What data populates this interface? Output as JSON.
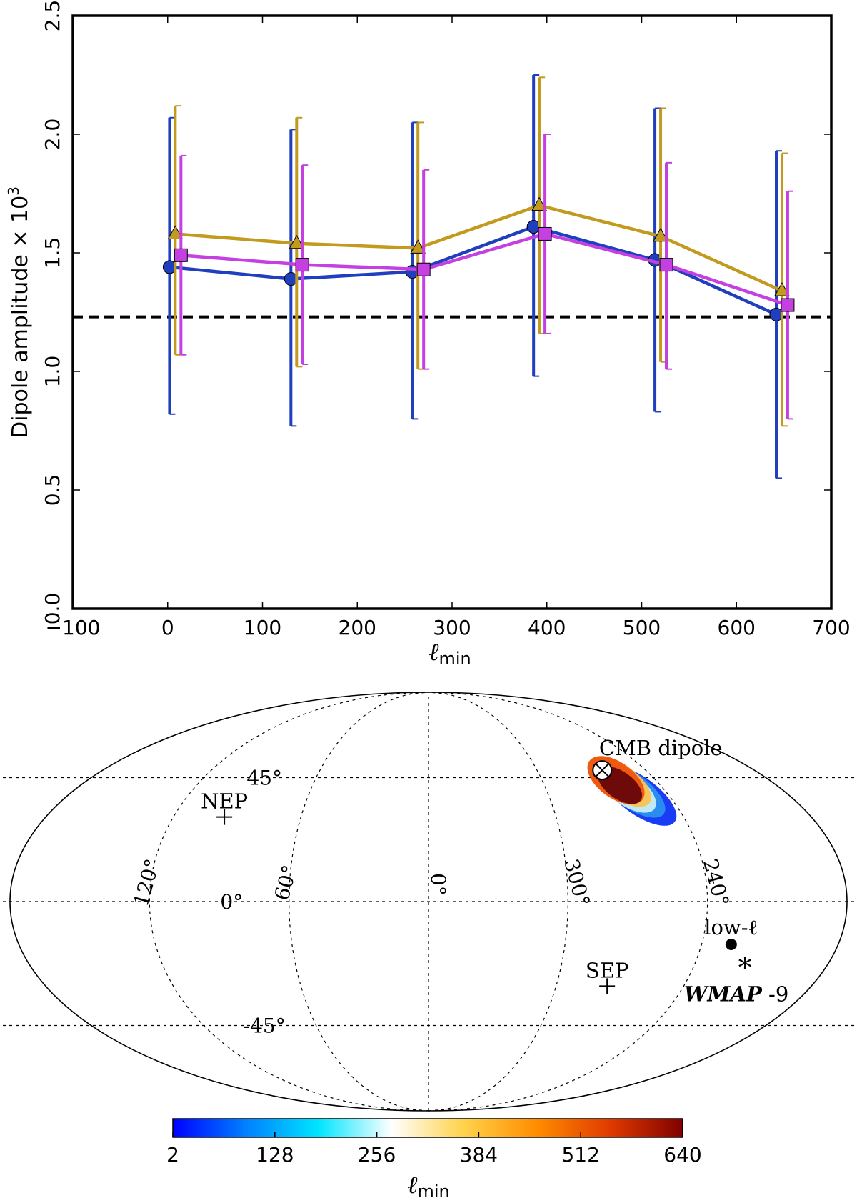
{
  "chart_data": [
    {
      "type": "line",
      "ylabel_main": "Dipole amplitude × 10",
      "ylabel_exp": "3",
      "xlabel_main": "ℓ",
      "xlabel_sub": "min",
      "xlim": [
        -100,
        700
      ],
      "ylim": [
        0.0,
        2.5
      ],
      "xticks": [
        -100,
        0,
        100,
        200,
        300,
        400,
        500,
        600,
        700
      ],
      "xtick_labels": [
        "−100",
        "0",
        "100",
        "200",
        "300",
        "400",
        "500",
        "600",
        "700"
      ],
      "yticks": [
        0.0,
        0.5,
        1.0,
        1.5,
        2.0,
        2.5
      ],
      "ytick_labels": [
        "0.0",
        "0.5",
        "1.0",
        "1.5",
        "2.0",
        "2.5"
      ],
      "reference_line": {
        "y": 1.23,
        "style": "dashed",
        "color": "#000000"
      },
      "series": [
        {
          "name": "series-blue",
          "color": "#1f3fbf",
          "marker": "circle",
          "x": [
            2,
            130,
            258,
            386,
            514,
            642
          ],
          "y": [
            1.44,
            1.39,
            1.42,
            1.61,
            1.47,
            1.24
          ],
          "err_low": [
            0.82,
            0.77,
            0.8,
            0.98,
            0.83,
            0.55
          ],
          "err_high": [
            2.07,
            2.02,
            2.05,
            2.25,
            2.11,
            1.93
          ]
        },
        {
          "name": "series-gold",
          "color": "#c19a1e",
          "marker": "triangle",
          "x": [
            8,
            136,
            264,
            392,
            520,
            648
          ],
          "y": [
            1.58,
            1.54,
            1.52,
            1.7,
            1.57,
            1.34
          ],
          "err_low": [
            1.07,
            1.02,
            1.01,
            1.16,
            1.04,
            0.77
          ],
          "err_high": [
            2.12,
            2.07,
            2.05,
            2.24,
            2.11,
            1.92
          ]
        },
        {
          "name": "series-magenta",
          "color": "#c540e0",
          "marker": "square",
          "x": [
            14,
            142,
            270,
            398,
            526,
            654
          ],
          "y": [
            1.49,
            1.45,
            1.43,
            1.58,
            1.45,
            1.28
          ],
          "err_low": [
            1.07,
            1.03,
            1.01,
            1.16,
            1.01,
            0.8
          ],
          "err_high": [
            1.91,
            1.87,
            1.85,
            2.0,
            1.88,
            1.76
          ]
        }
      ]
    },
    {
      "type": "sky-map",
      "projection": "mollweide",
      "meridians": [
        {
          "lon": 120,
          "label": "120°"
        },
        {
          "lon": 60,
          "label": "60°"
        },
        {
          "lon": 0,
          "label": "0°"
        },
        {
          "lon": 300,
          "label": "300°"
        },
        {
          "lon": 240,
          "label": "240°"
        }
      ],
      "parallels": [
        {
          "lat": 45,
          "label": "45°"
        },
        {
          "lat": 0,
          "label": "0°"
        },
        {
          "lat": -45,
          "label": "-45°"
        }
      ],
      "markers": [
        {
          "name": "NEP",
          "label": "NEP",
          "symbol": "+",
          "lon": 96,
          "lat": 30
        },
        {
          "name": "SEP",
          "label": "SEP",
          "symbol": "+",
          "lon": 276,
          "lat": -30
        },
        {
          "name": "CMB dipole",
          "label": "CMB dipole",
          "symbol": "⊗",
          "lon": 264,
          "lat": 48
        },
        {
          "name": "low-ℓ",
          "label": "low-ℓ",
          "symbol": "●",
          "lon": 227,
          "lat": -15
        },
        {
          "name": "WMAP-9",
          "label": "WMAP",
          "label_suffix": "-9",
          "symbol": "*",
          "lon": 218,
          "lat": -21
        }
      ],
      "regions": [
        {
          "lmin": 2,
          "color": "#1a3cf5"
        },
        {
          "lmin": 128,
          "color": "#2a8cf0"
        },
        {
          "lmin": 256,
          "color": "#bfeaf5"
        },
        {
          "lmin": 384,
          "color": "#f7c45a"
        },
        {
          "lmin": 512,
          "color": "#f05a10"
        },
        {
          "lmin": 640,
          "color": "#6e0a0a"
        }
      ],
      "colorbar": {
        "ticks": [
          "2",
          "128",
          "256",
          "384",
          "512",
          "640"
        ],
        "label_main": "ℓ",
        "label_sub": "min",
        "colors": [
          "#0000ff",
          "#0080ff",
          "#00e5ff",
          "#ffffff",
          "#ffd24a",
          "#ff8c00",
          "#e03a00",
          "#800000"
        ]
      }
    }
  ]
}
